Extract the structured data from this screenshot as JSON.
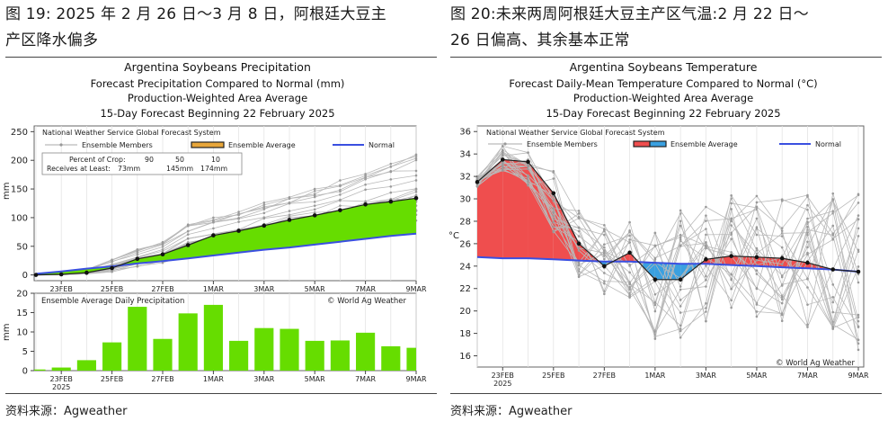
{
  "left": {
    "caption_line1": "图 19: 2025 年 2 月 26 日～3 月 8 日，阿根廷大豆主",
    "caption_line2": "产区降水偏多",
    "source": "资料来源：Agweather",
    "chart_title": [
      "Argentina Soybeans Precipitation",
      "Forecast Precipitation Compared to Normal (mm)",
      "Production-Weighted Area Average",
      "15-Day Forecast Beginning 22 February 2025"
    ]
  },
  "right": {
    "caption_line1": "图 20:未来两周阿根廷大豆主产区气温:2 月 22 日～",
    "caption_line2": "26 日偏高、其余基本正常",
    "source": "资料来源：Agweather",
    "chart_title": [
      "Argentina Soybeans Temperature",
      "Forecast Daily-Mean Temperature Compared to Normal (°C)",
      "Production-Weighted Area Average",
      "15-Day Forecast Beginning 22 February 2025"
    ]
  },
  "chart_data": [
    {
      "type": "line",
      "title": "Argentina Soybeans Precipitation",
      "ylabel": "mm",
      "ylim": [
        -10,
        260
      ],
      "yticks": [
        0,
        50,
        100,
        150,
        200,
        250
      ],
      "x": [
        0,
        1,
        2,
        3,
        4,
        5,
        6,
        7,
        8,
        9,
        10,
        11,
        12,
        13,
        14,
        15
      ],
      "xticks": [
        {
          "at": 1,
          "label": "23FEB"
        },
        {
          "at": 3,
          "label": "25FEB"
        },
        {
          "at": 5,
          "label": "27FEB"
        },
        {
          "at": 7,
          "label": "1MAR"
        },
        {
          "at": 9,
          "label": "3MAR"
        },
        {
          "at": 11,
          "label": "5MAR"
        },
        {
          "at": 13,
          "label": "7MAR"
        },
        {
          "at": 15,
          "label": "9MAR"
        }
      ],
      "year_label": "2025",
      "legend_header": "National Weather Service Global Forecast System",
      "legend": [
        "Ensemble Members",
        "Ensemble Average",
        "Normal"
      ],
      "crop_table": {
        "header": "Percent of Crop:",
        "percents": [
          "90",
          "50",
          "10"
        ],
        "row_label": "Receives at Least:",
        "amounts": [
          "73mm",
          "145mm",
          "174mm"
        ]
      },
      "series": [
        {
          "name": "Ensemble Average",
          "values": [
            0,
            1,
            4,
            12,
            28,
            36,
            52,
            69,
            77,
            86,
            96,
            104,
            113,
            123,
            128,
            134
          ]
        },
        {
          "name": "Normal",
          "values": [
            2,
            6,
            11,
            15,
            20,
            24,
            29,
            34,
            39,
            44,
            48,
            53,
            58,
            63,
            68,
            72
          ]
        }
      ],
      "ensemble_spread_min": [
        0,
        0,
        1,
        5,
        12,
        20,
        34,
        42,
        48,
        54,
        60,
        66,
        70,
        75,
        80,
        84
      ],
      "ensemble_spread_max": [
        0,
        3,
        10,
        28,
        45,
        58,
        88,
        100,
        110,
        128,
        140,
        150,
        165,
        180,
        195,
        210
      ]
    },
    {
      "type": "bar",
      "title": "Ensemble Average Daily Precipitation",
      "credit": "© World Ag Weather",
      "ylabel": "mm",
      "ylim": [
        0,
        20
      ],
      "yticks": [
        0,
        5,
        10,
        15,
        20
      ],
      "x": [
        0,
        1,
        2,
        3,
        4,
        5,
        6,
        7,
        8,
        9,
        10,
        11,
        12,
        13,
        14,
        15
      ],
      "values": [
        0.3,
        0.8,
        2.7,
        7.3,
        16.5,
        8.2,
        14.8,
        17.0,
        7.7,
        11.0,
        10.8,
        7.7,
        7.8,
        9.8,
        6.3,
        5.9
      ],
      "color": "#66dd00",
      "xticks": [
        {
          "at": 1,
          "label": "23FEB"
        },
        {
          "at": 3,
          "label": "25FEB"
        },
        {
          "at": 5,
          "label": "27FEB"
        },
        {
          "at": 7,
          "label": "1MAR"
        },
        {
          "at": 9,
          "label": "3MAR"
        },
        {
          "at": 11,
          "label": "5MAR"
        },
        {
          "at": 13,
          "label": "7MAR"
        },
        {
          "at": 15,
          "label": "9MAR"
        }
      ],
      "year_label": "2025"
    },
    {
      "type": "line",
      "title": "Argentina Soybeans Temperature",
      "credit": "© World Ag Weather",
      "ylabel": "°C",
      "ylim": [
        15,
        36.5
      ],
      "yticks": [
        16,
        18,
        20,
        22,
        24,
        26,
        28,
        30,
        32,
        34,
        36
      ],
      "x": [
        0,
        1,
        2,
        3,
        4,
        5,
        6,
        7,
        8,
        9,
        10,
        11,
        12,
        13,
        14,
        15
      ],
      "xticks": [
        {
          "at": 1,
          "label": "23FEB"
        },
        {
          "at": 3,
          "label": "25FEB"
        },
        {
          "at": 5,
          "label": "27FEB"
        },
        {
          "at": 7,
          "label": "1MAR"
        },
        {
          "at": 9,
          "label": "3MAR"
        },
        {
          "at": 11,
          "label": "5MAR"
        },
        {
          "at": 13,
          "label": "7MAR"
        },
        {
          "at": 15,
          "label": "9MAR"
        }
      ],
      "year_label": "2025",
      "legend_header": "National Weather Service Global Forecast System",
      "legend": [
        "Ensemble Members",
        "Ensemble Average",
        "Normal"
      ],
      "series": [
        {
          "name": "Ensemble Average",
          "values": [
            31.5,
            33.5,
            33.3,
            30.5,
            26.0,
            24.0,
            25.2,
            22.8,
            22.8,
            24.6,
            24.9,
            24.8,
            24.7,
            24.3,
            23.7,
            23.5
          ]
        },
        {
          "name": "Normal",
          "values": [
            24.8,
            24.7,
            24.7,
            24.6,
            24.5,
            24.4,
            24.4,
            24.3,
            24.2,
            24.2,
            24.1,
            24.0,
            23.9,
            23.8,
            23.7,
            23.5
          ]
        }
      ],
      "ensemble_spread_min": [
        31.0,
        32.5,
        31.0,
        27.0,
        23.0,
        21.5,
        20.5,
        17.5,
        17.0,
        19.0,
        20.0,
        19.0,
        18.5,
        18.0,
        17.0,
        16.5
      ],
      "ensemble_spread_max": [
        32.0,
        34.8,
        34.5,
        32.5,
        29.0,
        28.0,
        28.5,
        28.0,
        29.0,
        29.5,
        30.5,
        30.5,
        30.0,
        30.5,
        31.0,
        31.0
      ]
    }
  ]
}
